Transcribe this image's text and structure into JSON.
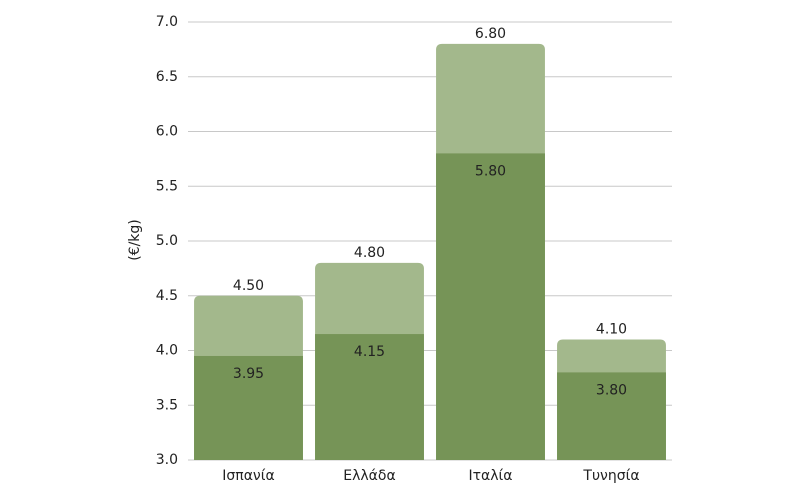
{
  "chart_data": {
    "type": "overlap-bar",
    "y_label": "(€/kg)",
    "categories": [
      "Ισπανία",
      "Ελλάδα",
      "Ιταλία",
      "Τυνησία"
    ],
    "series": [
      {
        "color": "#a3b88c",
        "values": [
          4.5,
          4.8,
          6.8,
          4.1
        ],
        "value_labels": [
          "4.50",
          "4.80",
          "6.80",
          "4.10"
        ]
      },
      {
        "color": "#769457",
        "values": [
          3.95,
          4.15,
          5.8,
          3.8
        ],
        "value_labels": [
          "3.95",
          "4.15",
          "5.80",
          "3.80"
        ]
      }
    ],
    "ylim": [
      3,
      7
    ],
    "yticks": [
      {
        "value": 3,
        "label": "3.0"
      },
      3.5,
      {
        "value": 4,
        "label": "4.0"
      },
      4.5,
      {
        "value": 5,
        "label": "5.0"
      },
      5.5,
      {
        "value": 6,
        "label": "6.0"
      },
      6.5,
      {
        "value": 7,
        "label": "7.0"
      }
    ],
    "grid": true
  }
}
